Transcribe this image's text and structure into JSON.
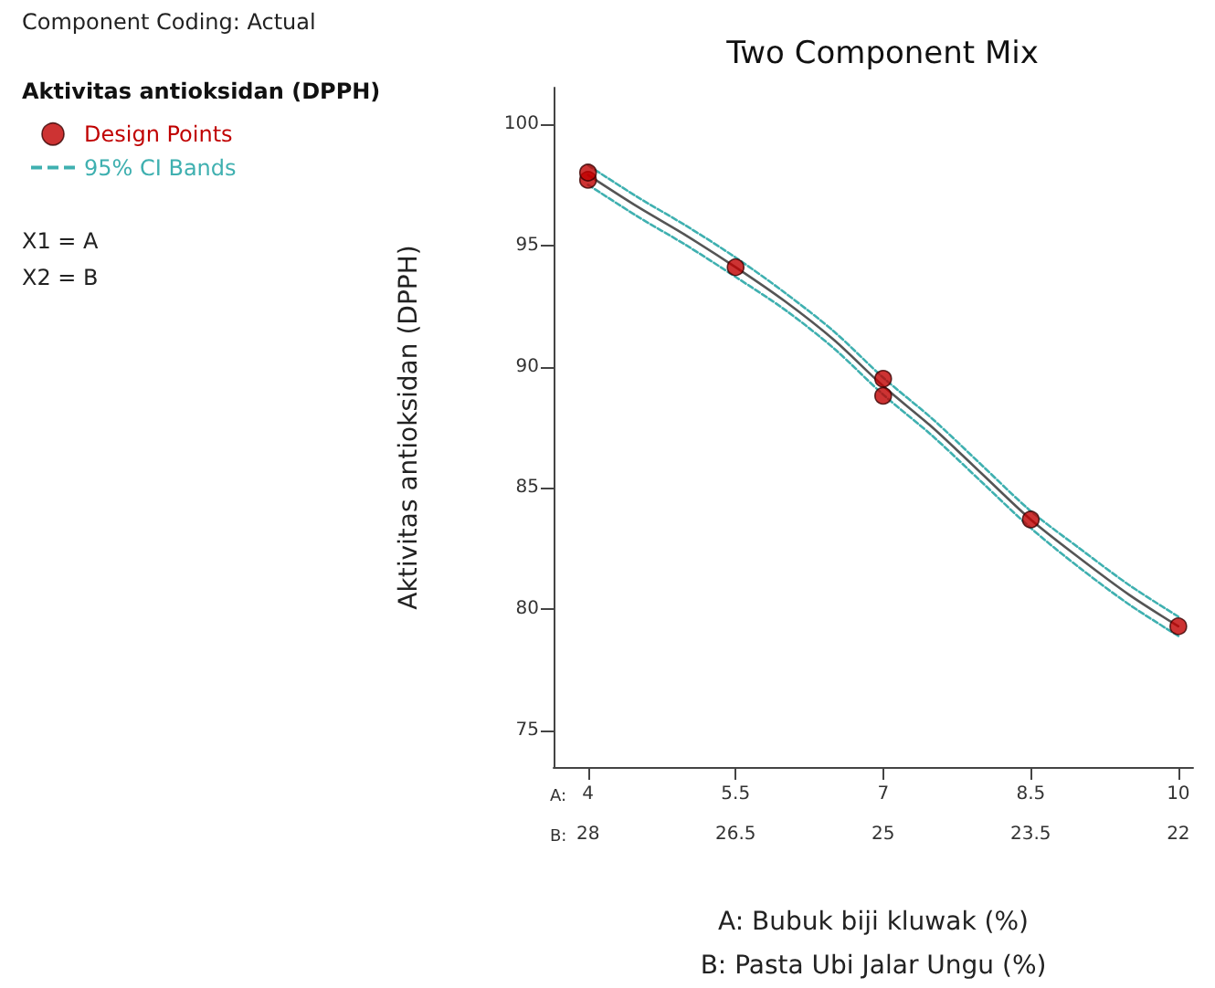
{
  "chart_data": {
    "type": "scatter",
    "title": "Two Component Mix",
    "xlabel": "A: Bubuk biji kluwak (%)",
    "x2label": "B: Pasta Ubi Jalar Ungu (%)",
    "ylabel": "Aktivitas antioksidan (DPPH)",
    "legend_title": "Aktivitas antioksidan (DPPH)",
    "legend": "top left",
    "annotations": [
      "Component Coding: Actual",
      "X1 = A",
      "X2 = B",
      "A:",
      "B:"
    ],
    "xlim": [
      3.65,
      10.15
    ],
    "xticks": [
      4,
      5.5,
      7,
      8.5,
      10
    ],
    "x2lim": [
      28.35,
      21.85
    ],
    "x2ticks": [
      28,
      26.5,
      25,
      23.5,
      22
    ],
    "ylim": [
      73.5,
      101.5
    ],
    "yticks": [
      75,
      80,
      85,
      90,
      95,
      100
    ],
    "grid": false,
    "series": [
      {
        "type": "line",
        "color": "#555555",
        "marker": "none",
        "line_style": "solid",
        "x": [
          4,
          4.5,
          5,
          5.5,
          6,
          6.5,
          7,
          7.5,
          8,
          8.5,
          9,
          9.5,
          10
        ],
        "values": [
          97.9,
          96.6,
          95.4,
          94.1,
          92.7,
          91.1,
          89.2,
          87.5,
          85.6,
          83.7,
          82.1,
          80.6,
          79.3
        ]
      },
      {
        "type": "line",
        "name": "95% CI Bands",
        "color": "#3fb0b0",
        "marker": "none",
        "line_style": "dashed",
        "x": [
          4,
          4.5,
          5,
          5.5,
          6,
          6.5,
          7,
          7.5,
          8,
          8.5,
          9,
          9.5,
          10
        ],
        "values": [
          98.3,
          97.0,
          95.8,
          94.5,
          93.05,
          91.45,
          89.55,
          87.85,
          85.95,
          84.05,
          82.5,
          81.0,
          79.7
        ]
      },
      {
        "type": "line",
        "color": "#3fb0b0",
        "marker": "none",
        "line_style": "dashed",
        "x": [
          4,
          4.5,
          5,
          5.5,
          6,
          6.5,
          7,
          7.5,
          8,
          8.5,
          9,
          9.5,
          10
        ],
        "values": [
          97.5,
          96.2,
          95.0,
          93.7,
          92.35,
          90.75,
          88.85,
          87.15,
          85.25,
          83.35,
          81.7,
          80.2,
          78.9
        ]
      },
      {
        "name": "Design Points",
        "color": "#c00000",
        "marker": "circle",
        "x": [
          4,
          4,
          5.5,
          7,
          7,
          8.5,
          10
        ],
        "values": [
          97.7,
          98.0,
          94.1,
          89.5,
          88.8,
          83.7,
          79.3
        ]
      }
    ]
  }
}
